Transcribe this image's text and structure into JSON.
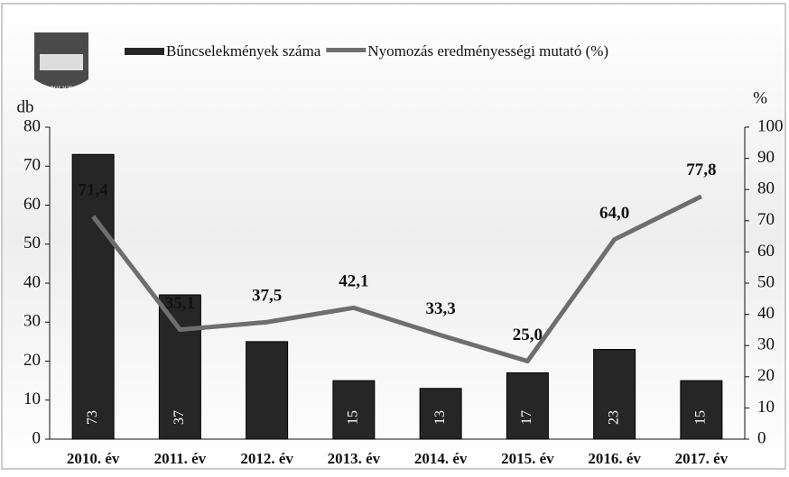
{
  "chart_data": {
    "type": "bar-line",
    "categories": [
      "2010. év",
      "2011. év",
      "2012. év",
      "2013. év",
      "2014. év",
      "2015. év",
      "2016. év",
      "2017. év"
    ],
    "series": [
      {
        "name": "Bűncselekmények száma",
        "type": "bar",
        "color": "#262626",
        "values": [
          73,
          37,
          25,
          15,
          13,
          17,
          23,
          15
        ],
        "value_labels": [
          "73",
          "37",
          null,
          "15",
          "13",
          "17",
          "23",
          "15"
        ]
      },
      {
        "name": "Nyomozás eredményességi mutató (%)",
        "type": "line",
        "axis": "y2",
        "color": "#6e6e6e",
        "values": [
          71.4,
          35.1,
          37.5,
          42.1,
          33.3,
          25.0,
          64.0,
          77.8
        ],
        "value_labels": [
          "71,4",
          "35,1",
          "37,5",
          "42,1",
          "33,3",
          "25,0",
          "64,0",
          "77,8"
        ]
      }
    ],
    "ylabel": "db",
    "y2label": "%",
    "ylim": [
      0,
      80
    ],
    "yticks": [
      0,
      10,
      20,
      30,
      40,
      50,
      60,
      70,
      80
    ],
    "y2lim": [
      0,
      100
    ],
    "y2ticks": [
      0,
      10,
      20,
      30,
      40,
      50,
      60,
      70,
      80,
      90,
      100
    ],
    "legend": "top"
  }
}
